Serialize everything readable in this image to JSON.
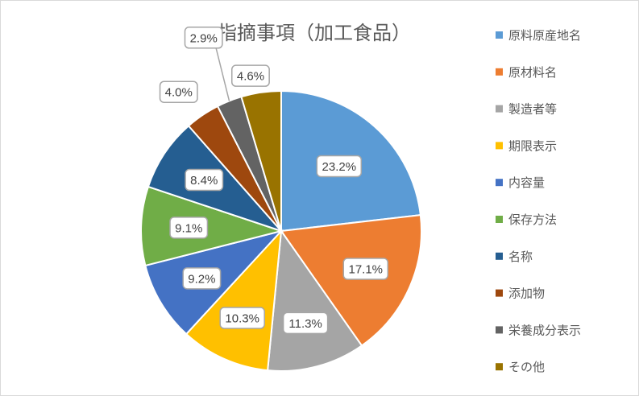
{
  "chart_data": {
    "type": "pie",
    "title": "指摘事項（加工食品）",
    "legend_position": "right",
    "categories": [
      "原料原産地名",
      "原材料名",
      "製造者等",
      "期限表示",
      "内容量",
      "保存方法",
      "名称",
      "添加物",
      "栄養成分表示",
      "その他"
    ],
    "values": [
      23.2,
      17.1,
      11.3,
      10.3,
      9.2,
      9.1,
      8.4,
      4.0,
      2.9,
      4.6
    ],
    "labels": [
      "23.2%",
      "17.1%",
      "11.3%",
      "10.3%",
      "9.2%",
      "9.1%",
      "8.4%",
      "4.0%",
      "2.9%",
      "4.6%"
    ],
    "colors": [
      "#5B9BD5",
      "#ED7D31",
      "#A5A5A5",
      "#FFC000",
      "#4472C4",
      "#70AD47",
      "#255E91",
      "#9E480E",
      "#636363",
      "#997300"
    ]
  }
}
